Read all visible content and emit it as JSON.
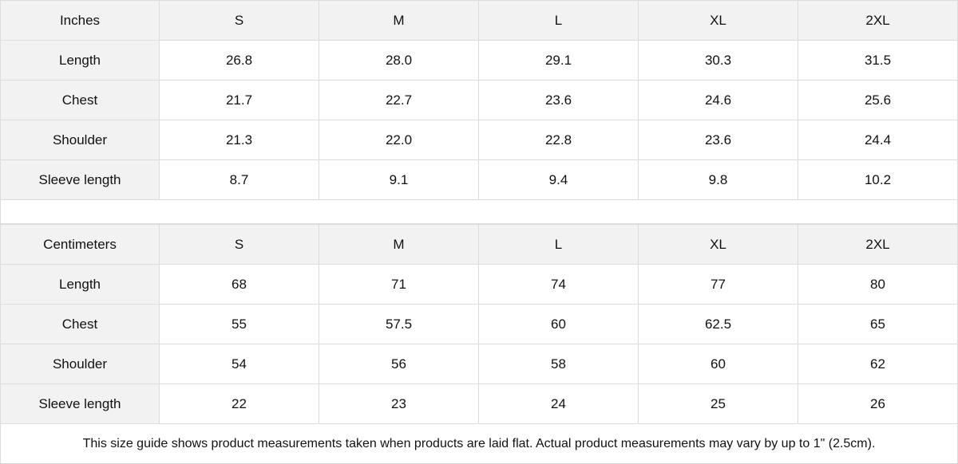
{
  "tables": [
    {
      "unit": "Inches",
      "sizes": [
        "S",
        "M",
        "L",
        "XL",
        "2XL"
      ],
      "rows": [
        {
          "label": "Length",
          "values": [
            "26.8",
            "28.0",
            "29.1",
            "30.3",
            "31.5"
          ]
        },
        {
          "label": "Chest",
          "values": [
            "21.7",
            "22.7",
            "23.6",
            "24.6",
            "25.6"
          ]
        },
        {
          "label": "Shoulder",
          "values": [
            "21.3",
            "22.0",
            "22.8",
            "23.6",
            "24.4"
          ]
        },
        {
          "label": "Sleeve length",
          "values": [
            "8.7",
            "9.1",
            "9.4",
            "9.8",
            "10.2"
          ]
        }
      ]
    },
    {
      "unit": "Centimeters",
      "sizes": [
        "S",
        "M",
        "L",
        "XL",
        "2XL"
      ],
      "rows": [
        {
          "label": "Length",
          "values": [
            "68",
            "71",
            "74",
            "77",
            "80"
          ]
        },
        {
          "label": "Chest",
          "values": [
            "55",
            "57.5",
            "60",
            "62.5",
            "65"
          ]
        },
        {
          "label": "Shoulder",
          "values": [
            "54",
            "56",
            "58",
            "60",
            "62"
          ]
        },
        {
          "label": "Sleeve length",
          "values": [
            "22",
            "23",
            "24",
            "25",
            "26"
          ]
        }
      ]
    }
  ],
  "note": "This size guide shows product measurements taken when products are laid flat.  Actual product measurements may vary by up to 1\" (2.5cm).",
  "colors": {
    "header_bg": "#f2f2f2",
    "border": "#dcdcdc"
  }
}
